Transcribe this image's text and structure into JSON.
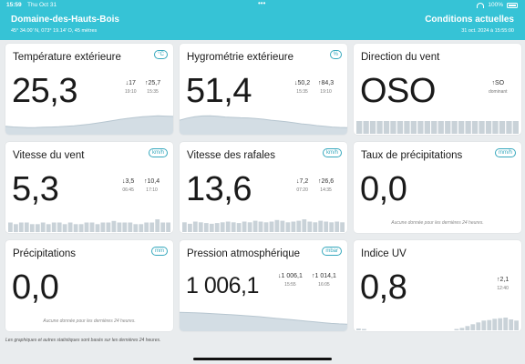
{
  "status_bar": {
    "time": "15:59",
    "date": "Thu Oct 31",
    "battery": "100%"
  },
  "header": {
    "station_name": "Domaine-des-Hauts-Bois",
    "coordinates": "45° 34.00' N, 073° 19.14' O, 45 mètres",
    "conditions_title": "Conditions actuelles",
    "updated": "31 oct. 2024 à 15:55:00"
  },
  "cards": {
    "temp": {
      "title": "Température extérieure",
      "unit": "°C",
      "value": "25,3",
      "min": "↓17",
      "min_time": "19:10",
      "max": "↑25,7",
      "max_time": "15:35"
    },
    "hum": {
      "title": "Hygrométrie extérieure",
      "unit": "%",
      "value": "51,4",
      "min": "↓50,2",
      "min_time": "15:35",
      "max": "↑84,3",
      "max_time": "19:10"
    },
    "wdir": {
      "title": "Direction du vent",
      "value": "OSO",
      "dominant": "↑SO",
      "dominant_label": "dominant"
    },
    "wspd": {
      "title": "Vitesse du vent",
      "unit": "km/h",
      "value": "5,3",
      "min": "↓3,5",
      "min_time": "06:45",
      "max": "↑10,4",
      "max_time": "17:10"
    },
    "gust": {
      "title": "Vitesse des rafales",
      "unit": "km/h",
      "value": "13,6",
      "min": "↓7,2",
      "min_time": "07:20",
      "max": "↑26,6",
      "max_time": "14:35"
    },
    "rrate": {
      "title": "Taux de précipitations",
      "unit": "mm/h",
      "value": "0,0",
      "note": "Aucune donnée pour les dernières 24 heures."
    },
    "rain": {
      "title": "Précipitations",
      "unit": "mm",
      "value": "0,0",
      "note": "Aucune donnée pour les dernières 24 heures."
    },
    "pres": {
      "title": "Pression atmosphérique",
      "unit": "mbar",
      "value": "1 006,1",
      "min": "↓1 006,1",
      "min_time": "15:55",
      "max": "↑1 014,1",
      "max_time": "16:05"
    },
    "uv": {
      "title": "Indice UV",
      "value": "0,8",
      "max": "↑2,1",
      "max_time": "12:40"
    }
  },
  "footer_note": "Les graphiques et autres statistiques sont basés sur les dernières 24 heures.",
  "colors": {
    "header_bg": "#36c3d6",
    "spark_fill": "#d3dde4",
    "bar_fill": "#c9d2d8",
    "unit_accent": "#36a8bd"
  },
  "sparklines": {
    "temp": [
      18,
      17.5,
      17.2,
      17,
      17.1,
      17.3,
      17.4,
      17.6,
      18,
      18.4,
      18.9,
      19.5,
      20.3,
      21.2,
      22.1,
      23,
      23.8,
      24.5,
      25,
      25.4,
      25.7,
      25.5,
      25.3
    ],
    "hum": [
      72,
      78,
      82,
      84,
      84.3,
      83,
      81,
      80,
      79,
      78.5,
      77,
      75,
      72,
      70,
      68,
      65,
      62,
      60,
      57,
      55,
      53,
      52,
      51.4
    ],
    "wdir": [
      6,
      6,
      6,
      6,
      6,
      6,
      6,
      6,
      6,
      6,
      6,
      6,
      6,
      6,
      6,
      6,
      6,
      6,
      6,
      6,
      6,
      6,
      6,
      6
    ],
    "wspd": [
      6,
      5,
      6,
      6,
      5,
      5,
      6,
      5,
      6,
      6,
      5,
      6,
      5,
      5,
      6,
      6,
      5,
      6,
      6,
      7,
      6,
      6,
      6,
      5,
      5,
      6,
      6,
      8,
      6,
      6
    ],
    "gust": [
      13,
      11,
      14,
      13,
      12,
      11,
      12,
      13,
      14,
      13,
      12,
      14,
      13,
      15,
      14,
      13,
      14,
      16,
      15,
      13,
      14,
      15,
      17,
      14,
      13,
      15,
      14,
      13,
      14,
      13
    ],
    "pres": [
      1014,
      1013.9,
      1013.7,
      1013.5,
      1013.2,
      1012.9,
      1012.6,
      1012.3,
      1011.9,
      1011.5,
      1011.1,
      1010.6,
      1010.1,
      1009.6,
      1009.1,
      1008.6,
      1008.1,
      1007.6,
      1007.1,
      1006.6,
      1006.3,
      1006.1
    ],
    "uv": [
      0.3,
      0.1,
      0,
      0,
      0,
      0,
      0,
      0,
      0,
      0,
      0,
      0,
      0,
      0,
      0,
      0,
      0,
      0,
      0.2,
      0.4,
      0.7,
      1.0,
      1.3,
      1.6,
      1.7,
      1.9,
      2.0,
      2.1,
      1.8,
      1.6
    ]
  }
}
